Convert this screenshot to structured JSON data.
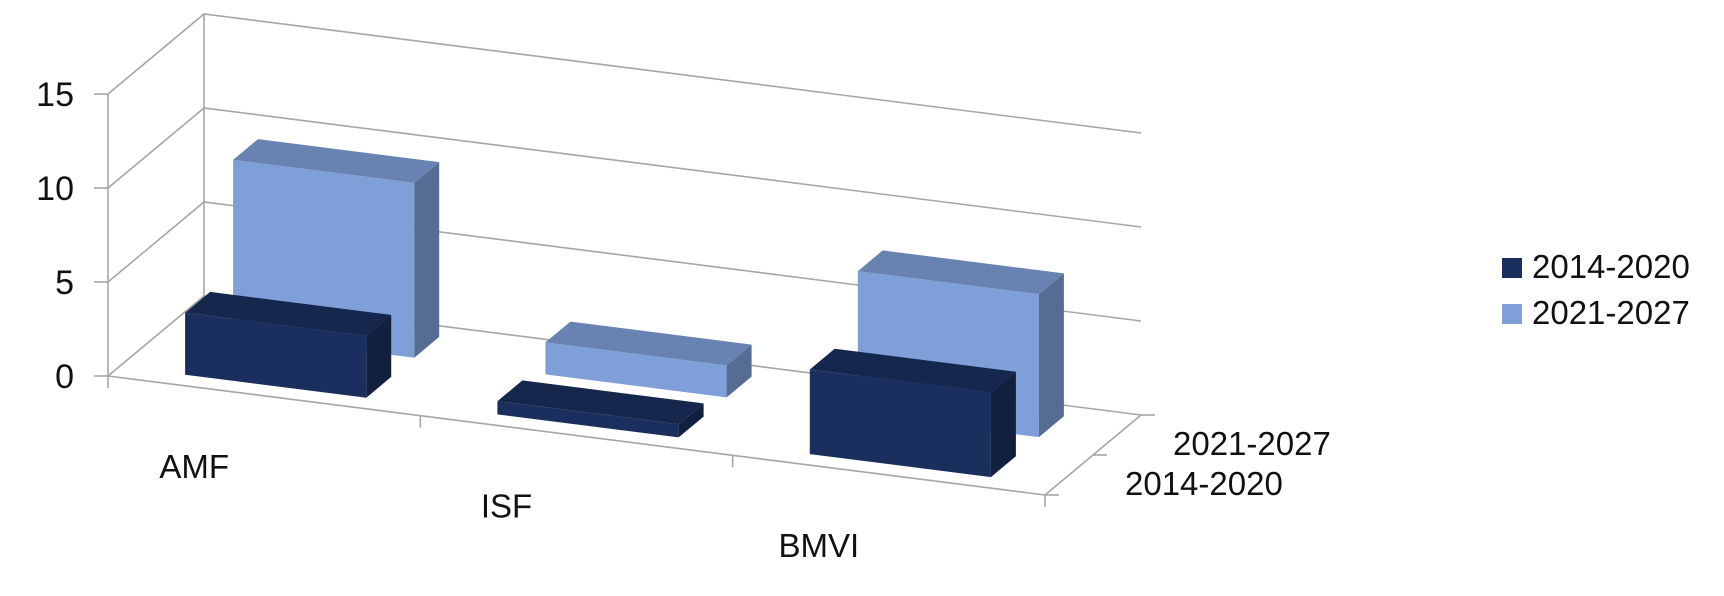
{
  "chart_data": {
    "type": "bar",
    "subtype": "3d-clustered-depth",
    "categories": [
      "AMF",
      "ISF",
      "BMVI"
    ],
    "series": [
      {
        "name": "2014-2020",
        "values": [
          3.3,
          0.7,
          4.5
        ],
        "color": "#1a2f5e"
      },
      {
        "name": "2021-2027",
        "values": [
          9.3,
          1.7,
          7.6
        ],
        "color": "#7f9fd8"
      }
    ],
    "y_ticks": [
      "0",
      "5",
      "10",
      "15"
    ],
    "ylim": [
      0,
      15
    ],
    "depth_labels": [
      "2014-2020",
      "2021-2027"
    ],
    "grid": true,
    "legend_position": "right"
  }
}
